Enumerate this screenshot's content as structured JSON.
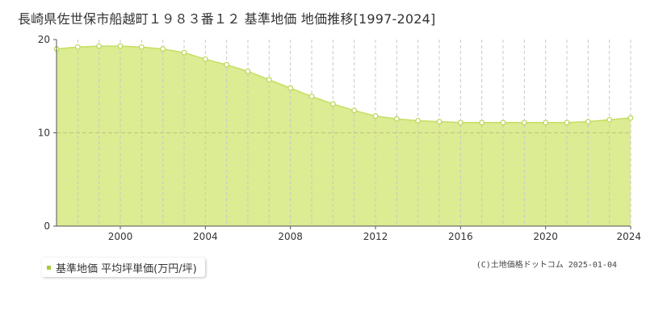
{
  "title": "長崎県佐世保市船越町１９８３番１２ 基準地価 地価推移[1997-2024]",
  "legend": {
    "label": "基準地価 平均坪単価(万円/坪)"
  },
  "credit": "(C)土地価格ドットコム 2025-01-04",
  "colors": {
    "fill": "#dbec92",
    "line": "#c5de5f",
    "marker_stroke": "#b9d65a",
    "marker_fill": "#ffffff",
    "legend_marker": "#a8cd38",
    "axis": "#555555",
    "vgrid": "#c8c8c8",
    "hgrid": "#c2c07a"
  },
  "chart_data": {
    "type": "area",
    "x": [
      1997,
      1998,
      1999,
      2000,
      2001,
      2002,
      2003,
      2004,
      2005,
      2006,
      2007,
      2008,
      2009,
      2010,
      2011,
      2012,
      2013,
      2014,
      2015,
      2016,
      2017,
      2018,
      2019,
      2020,
      2021,
      2022,
      2023,
      2024
    ],
    "series": [
      {
        "name": "基準地価 平均坪単価(万円/坪)",
        "values": [
          19.0,
          19.2,
          19.3,
          19.3,
          19.2,
          19.0,
          18.6,
          17.9,
          17.3,
          16.6,
          15.7,
          14.8,
          13.9,
          13.1,
          12.4,
          11.8,
          11.5,
          11.3,
          11.2,
          11.1,
          11.1,
          11.1,
          11.1,
          11.1,
          11.1,
          11.2,
          11.4,
          11.6
        ]
      }
    ],
    "xlim": [
      1997,
      2024
    ],
    "ylim": [
      0,
      20
    ],
    "x_ticks": [
      2000,
      2004,
      2008,
      2012,
      2016,
      2020,
      2024
    ],
    "y_ticks": [
      0,
      10,
      20
    ],
    "grid": {
      "vertical": true,
      "horizontal_dashed_at": [
        10
      ]
    },
    "legend_position": "bottom-left"
  }
}
